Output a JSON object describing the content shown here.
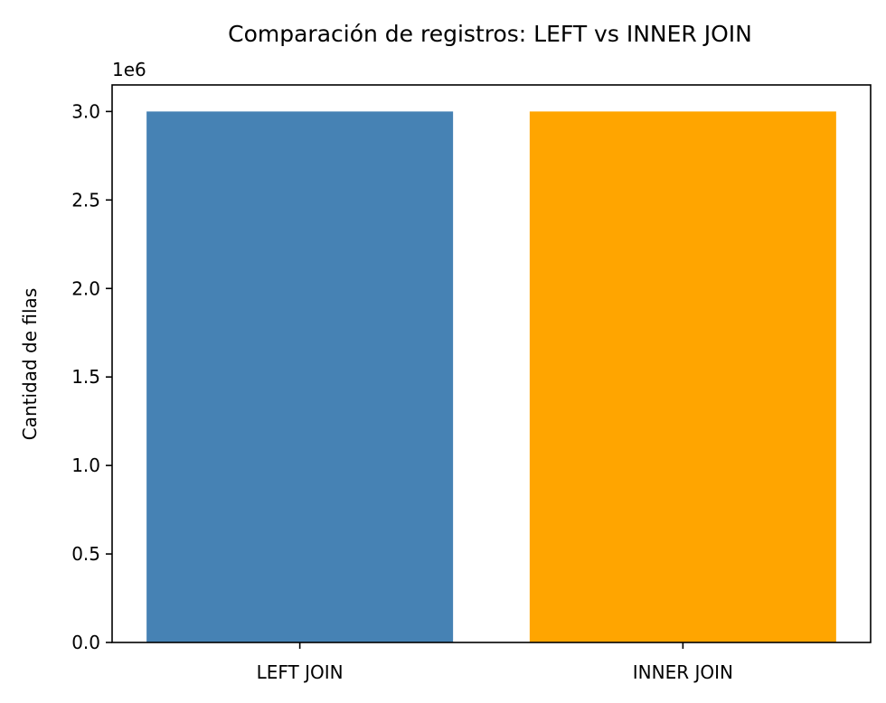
{
  "chart_data": {
    "type": "bar",
    "title": "Comparación de registros: LEFT vs INNER JOIN",
    "xlabel": "",
    "ylabel": "Cantidad de filas",
    "categories": [
      "LEFT JOIN",
      "INNER JOIN"
    ],
    "values": [
      3000000,
      3000000
    ],
    "colors": [
      "#4682b4",
      "#ffa500"
    ],
    "ylim": [
      0,
      3150000
    ],
    "yticks": [
      0,
      500000,
      1000000,
      1500000,
      2000000,
      2500000,
      3000000
    ],
    "ytick_labels": [
      "0.0",
      "0.5",
      "1.0",
      "1.5",
      "2.0",
      "2.5",
      "3.0"
    ],
    "y_offset_label": "1e6",
    "grid": false,
    "legend": "none"
  }
}
